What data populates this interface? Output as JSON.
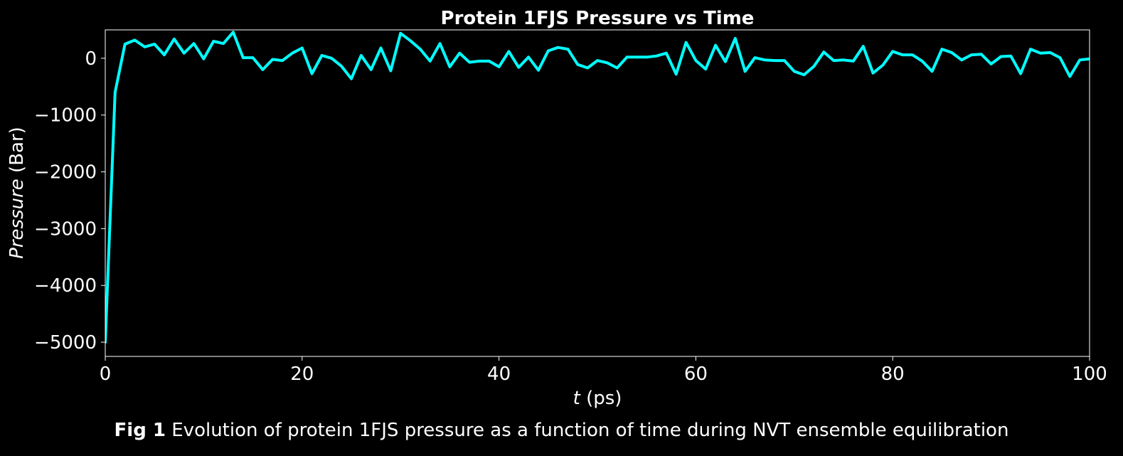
{
  "figure": {
    "caption_label": "Fig 1",
    "caption_text": "Evolution of protein 1FJS pressure as a function of time during NVT ensemble equilibration"
  },
  "chart_data": {
    "type": "line",
    "title": "Protein 1FJS Pressure vs Time",
    "xlabel_var": "t",
    "xlabel_unit": "(ps)",
    "ylabel_var": "Pressure",
    "ylabel_unit": "(Bar)",
    "xlim": [
      0,
      100
    ],
    "ylim": [
      -5250,
      500
    ],
    "x_ticks": [
      0,
      20,
      40,
      60,
      80,
      100
    ],
    "x_tick_labels": [
      "0",
      "20",
      "40",
      "60",
      "80",
      "100"
    ],
    "y_ticks": [
      0,
      -1000,
      -2000,
      -3000,
      -4000,
      -5000
    ],
    "y_tick_labels": [
      "0",
      "−1000",
      "−2000",
      "−3000",
      "−4000",
      "−5000"
    ],
    "grid": false,
    "line_color": "#00ffff",
    "background": "#000000",
    "series": [
      {
        "x": [
          0,
          1,
          2,
          3,
          4,
          5,
          6,
          7,
          8,
          9,
          10,
          11,
          12,
          13,
          14,
          15,
          16,
          17,
          18,
          19,
          20,
          21,
          22,
          23,
          24,
          25,
          26,
          27,
          28,
          29,
          30,
          31,
          32,
          33,
          34,
          35,
          36,
          37,
          38,
          39,
          40,
          41,
          42,
          43,
          44,
          45,
          46,
          47,
          48,
          49,
          50,
          51,
          52,
          53,
          54,
          55,
          56,
          57,
          58,
          59,
          60,
          61,
          62,
          63,
          64,
          65,
          66,
          67,
          68,
          69,
          70,
          71,
          72,
          73,
          74,
          75,
          76,
          77,
          78,
          79,
          80,
          81,
          82,
          83,
          84,
          85,
          86,
          87,
          88,
          89,
          90,
          91,
          92,
          93,
          94,
          95,
          96,
          97,
          98,
          99,
          100
        ],
        "values": [
          -5000,
          -600,
          250,
          320,
          200,
          250,
          60,
          340,
          90,
          260,
          -10,
          300,
          260,
          460,
          10,
          10,
          -200,
          -20,
          -40,
          90,
          180,
          -270,
          50,
          0,
          -140,
          -360,
          50,
          -200,
          180,
          -220,
          440,
          310,
          160,
          -50,
          260,
          -150,
          90,
          -70,
          -50,
          -50,
          -150,
          120,
          -160,
          20,
          -210,
          130,
          190,
          160,
          -110,
          -170,
          -40,
          -80,
          -170,
          20,
          20,
          20,
          40,
          90,
          -280,
          280,
          -40,
          -190,
          230,
          -60,
          350,
          -230,
          10,
          -30,
          -40,
          -40,
          -230,
          -290,
          -140,
          110,
          -40,
          -30,
          -50,
          210,
          -260,
          -120,
          120,
          60,
          60,
          -50,
          -230,
          160,
          100,
          -30,
          60,
          70,
          -100,
          30,
          40,
          -270,
          160,
          90,
          100,
          10,
          -320,
          -30,
          -10
        ]
      }
    ]
  }
}
